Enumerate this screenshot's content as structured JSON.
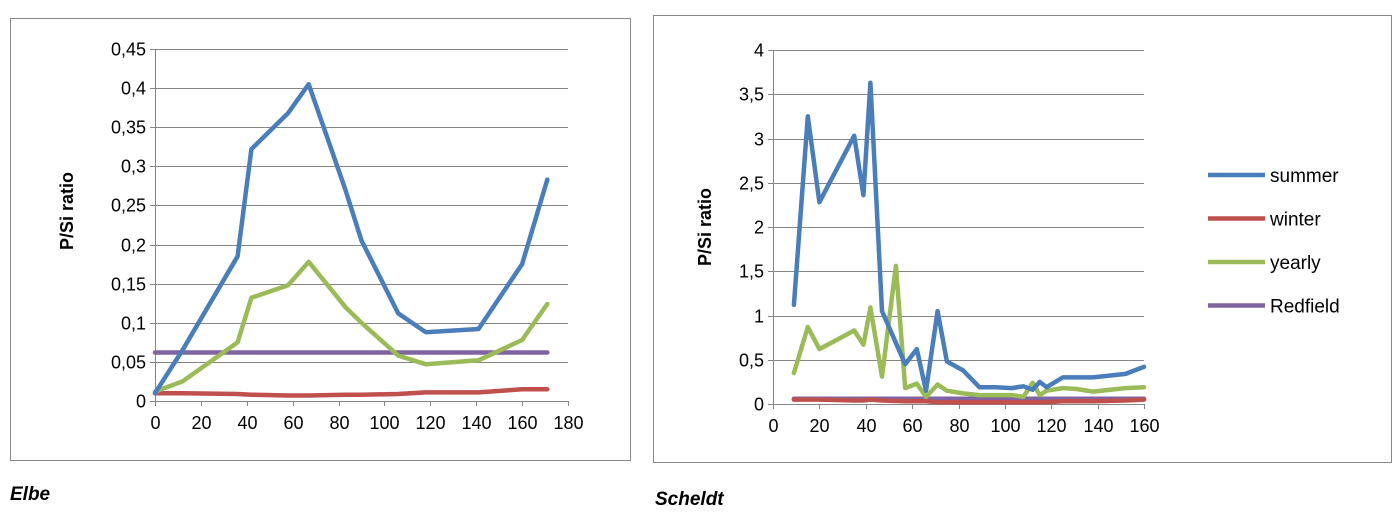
{
  "chart_data": [
    {
      "type": "line",
      "caption": "Elbe",
      "title": "",
      "xlabel": "",
      "ylabel": "P/Si ratio",
      "xlim": [
        0,
        180
      ],
      "ylim": [
        0,
        0.45
      ],
      "x_ticks": [
        0,
        20,
        40,
        60,
        80,
        100,
        120,
        140,
        160,
        180
      ],
      "y_ticks": [
        0,
        0.05,
        0.1,
        0.15,
        0.2,
        0.25,
        0.3,
        0.35,
        0.4,
        0.45
      ],
      "x_tick_labels": [
        "0",
        "20",
        "40",
        "60",
        "80",
        "100",
        "120",
        "140",
        "160",
        "180"
      ],
      "y_tick_labels": [
        "0",
        "0,05",
        "0,1",
        "0,15",
        "0,2",
        "0,25",
        "0,3",
        "0,35",
        "0,4",
        "0,45"
      ],
      "grid": "horizontal",
      "legend": "none",
      "series": [
        {
          "name": "summer",
          "color": "#4a7ebb",
          "x": [
            0,
            12,
            36,
            42,
            58,
            67,
            83,
            90,
            106,
            118,
            141,
            160,
            171
          ],
          "y": [
            0.01,
            0.065,
            0.185,
            0.322,
            0.368,
            0.405,
            0.27,
            0.205,
            0.112,
            0.088,
            0.092,
            0.175,
            0.283
          ]
        },
        {
          "name": "winter",
          "color": "#c0504d",
          "x": [
            0,
            12,
            36,
            42,
            58,
            67,
            83,
            90,
            106,
            118,
            141,
            160,
            171
          ],
          "y": [
            0.01,
            0.01,
            0.009,
            0.008,
            0.007,
            0.007,
            0.008,
            0.008,
            0.009,
            0.011,
            0.011,
            0.015,
            0.015
          ]
        },
        {
          "name": "yearly",
          "color": "#9bbb59",
          "x": [
            0,
            12,
            36,
            42,
            58,
            67,
            83,
            90,
            106,
            118,
            141,
            160,
            171
          ],
          "y": [
            0.012,
            0.025,
            0.075,
            0.132,
            0.148,
            0.178,
            0.12,
            0.1,
            0.058,
            0.047,
            0.052,
            0.078,
            0.124
          ]
        },
        {
          "name": "Redfield",
          "color": "#8064a2",
          "x": [
            0,
            171
          ],
          "y": [
            0.062,
            0.062
          ]
        }
      ]
    },
    {
      "type": "line",
      "caption": "Scheldt",
      "title": "",
      "xlabel": "",
      "ylabel": "P/Si ratio",
      "xlim": [
        0,
        160
      ],
      "ylim": [
        0,
        4
      ],
      "x_ticks": [
        0,
        20,
        40,
        60,
        80,
        100,
        120,
        140,
        160
      ],
      "y_ticks": [
        0,
        0.5,
        1,
        1.5,
        2,
        2.5,
        3,
        3.5,
        4
      ],
      "x_tick_labels": [
        "0",
        "20",
        "40",
        "60",
        "80",
        "100",
        "120",
        "140",
        "160"
      ],
      "y_tick_labels": [
        "0",
        "0,5",
        "1",
        "1,5",
        "2",
        "2,5",
        "3",
        "3,5",
        "4"
      ],
      "grid": "horizontal",
      "legend": "right",
      "series": [
        {
          "name": "summer",
          "color": "#4a7ebb",
          "x": [
            9,
            15,
            20,
            35,
            39,
            42,
            47,
            57,
            62,
            66,
            71,
            75,
            82,
            89,
            96,
            103,
            108,
            112,
            115,
            118,
            125,
            131,
            138,
            152,
            160
          ],
          "y": [
            1.12,
            3.25,
            2.28,
            3.03,
            2.36,
            3.63,
            1.05,
            0.45,
            0.62,
            0.15,
            1.05,
            0.48,
            0.38,
            0.19,
            0.19,
            0.18,
            0.2,
            0.16,
            0.25,
            0.19,
            0.3,
            0.3,
            0.3,
            0.34,
            0.42
          ]
        },
        {
          "name": "winter",
          "color": "#c0504d",
          "x": [
            9,
            15,
            20,
            35,
            39,
            42,
            47,
            57,
            62,
            66,
            71,
            75,
            82,
            89,
            96,
            103,
            108,
            112,
            115,
            118,
            125,
            131,
            138,
            152,
            160
          ],
          "y": [
            0.05,
            0.05,
            0.05,
            0.04,
            0.04,
            0.05,
            0.04,
            0.03,
            0.03,
            0.03,
            0.02,
            0.02,
            0.02,
            0.02,
            0.02,
            0.02,
            0.02,
            0.02,
            0.02,
            0.02,
            0.03,
            0.03,
            0.03,
            0.04,
            0.05
          ]
        },
        {
          "name": "yearly",
          "color": "#9bbb59",
          "x": [
            9,
            15,
            20,
            35,
            39,
            42,
            47,
            53,
            57,
            62,
            66,
            71,
            75,
            82,
            89,
            96,
            103,
            108,
            112,
            115,
            118,
            125,
            131,
            138,
            152,
            160
          ],
          "y": [
            0.35,
            0.87,
            0.62,
            0.83,
            0.67,
            1.09,
            0.31,
            1.56,
            0.18,
            0.23,
            0.08,
            0.22,
            0.15,
            0.12,
            0.1,
            0.1,
            0.1,
            0.08,
            0.24,
            0.1,
            0.15,
            0.18,
            0.17,
            0.14,
            0.18,
            0.19
          ]
        },
        {
          "name": "Redfield",
          "color": "#8064a2",
          "x": [
            9,
            160
          ],
          "y": [
            0.06,
            0.06
          ]
        }
      ]
    }
  ]
}
